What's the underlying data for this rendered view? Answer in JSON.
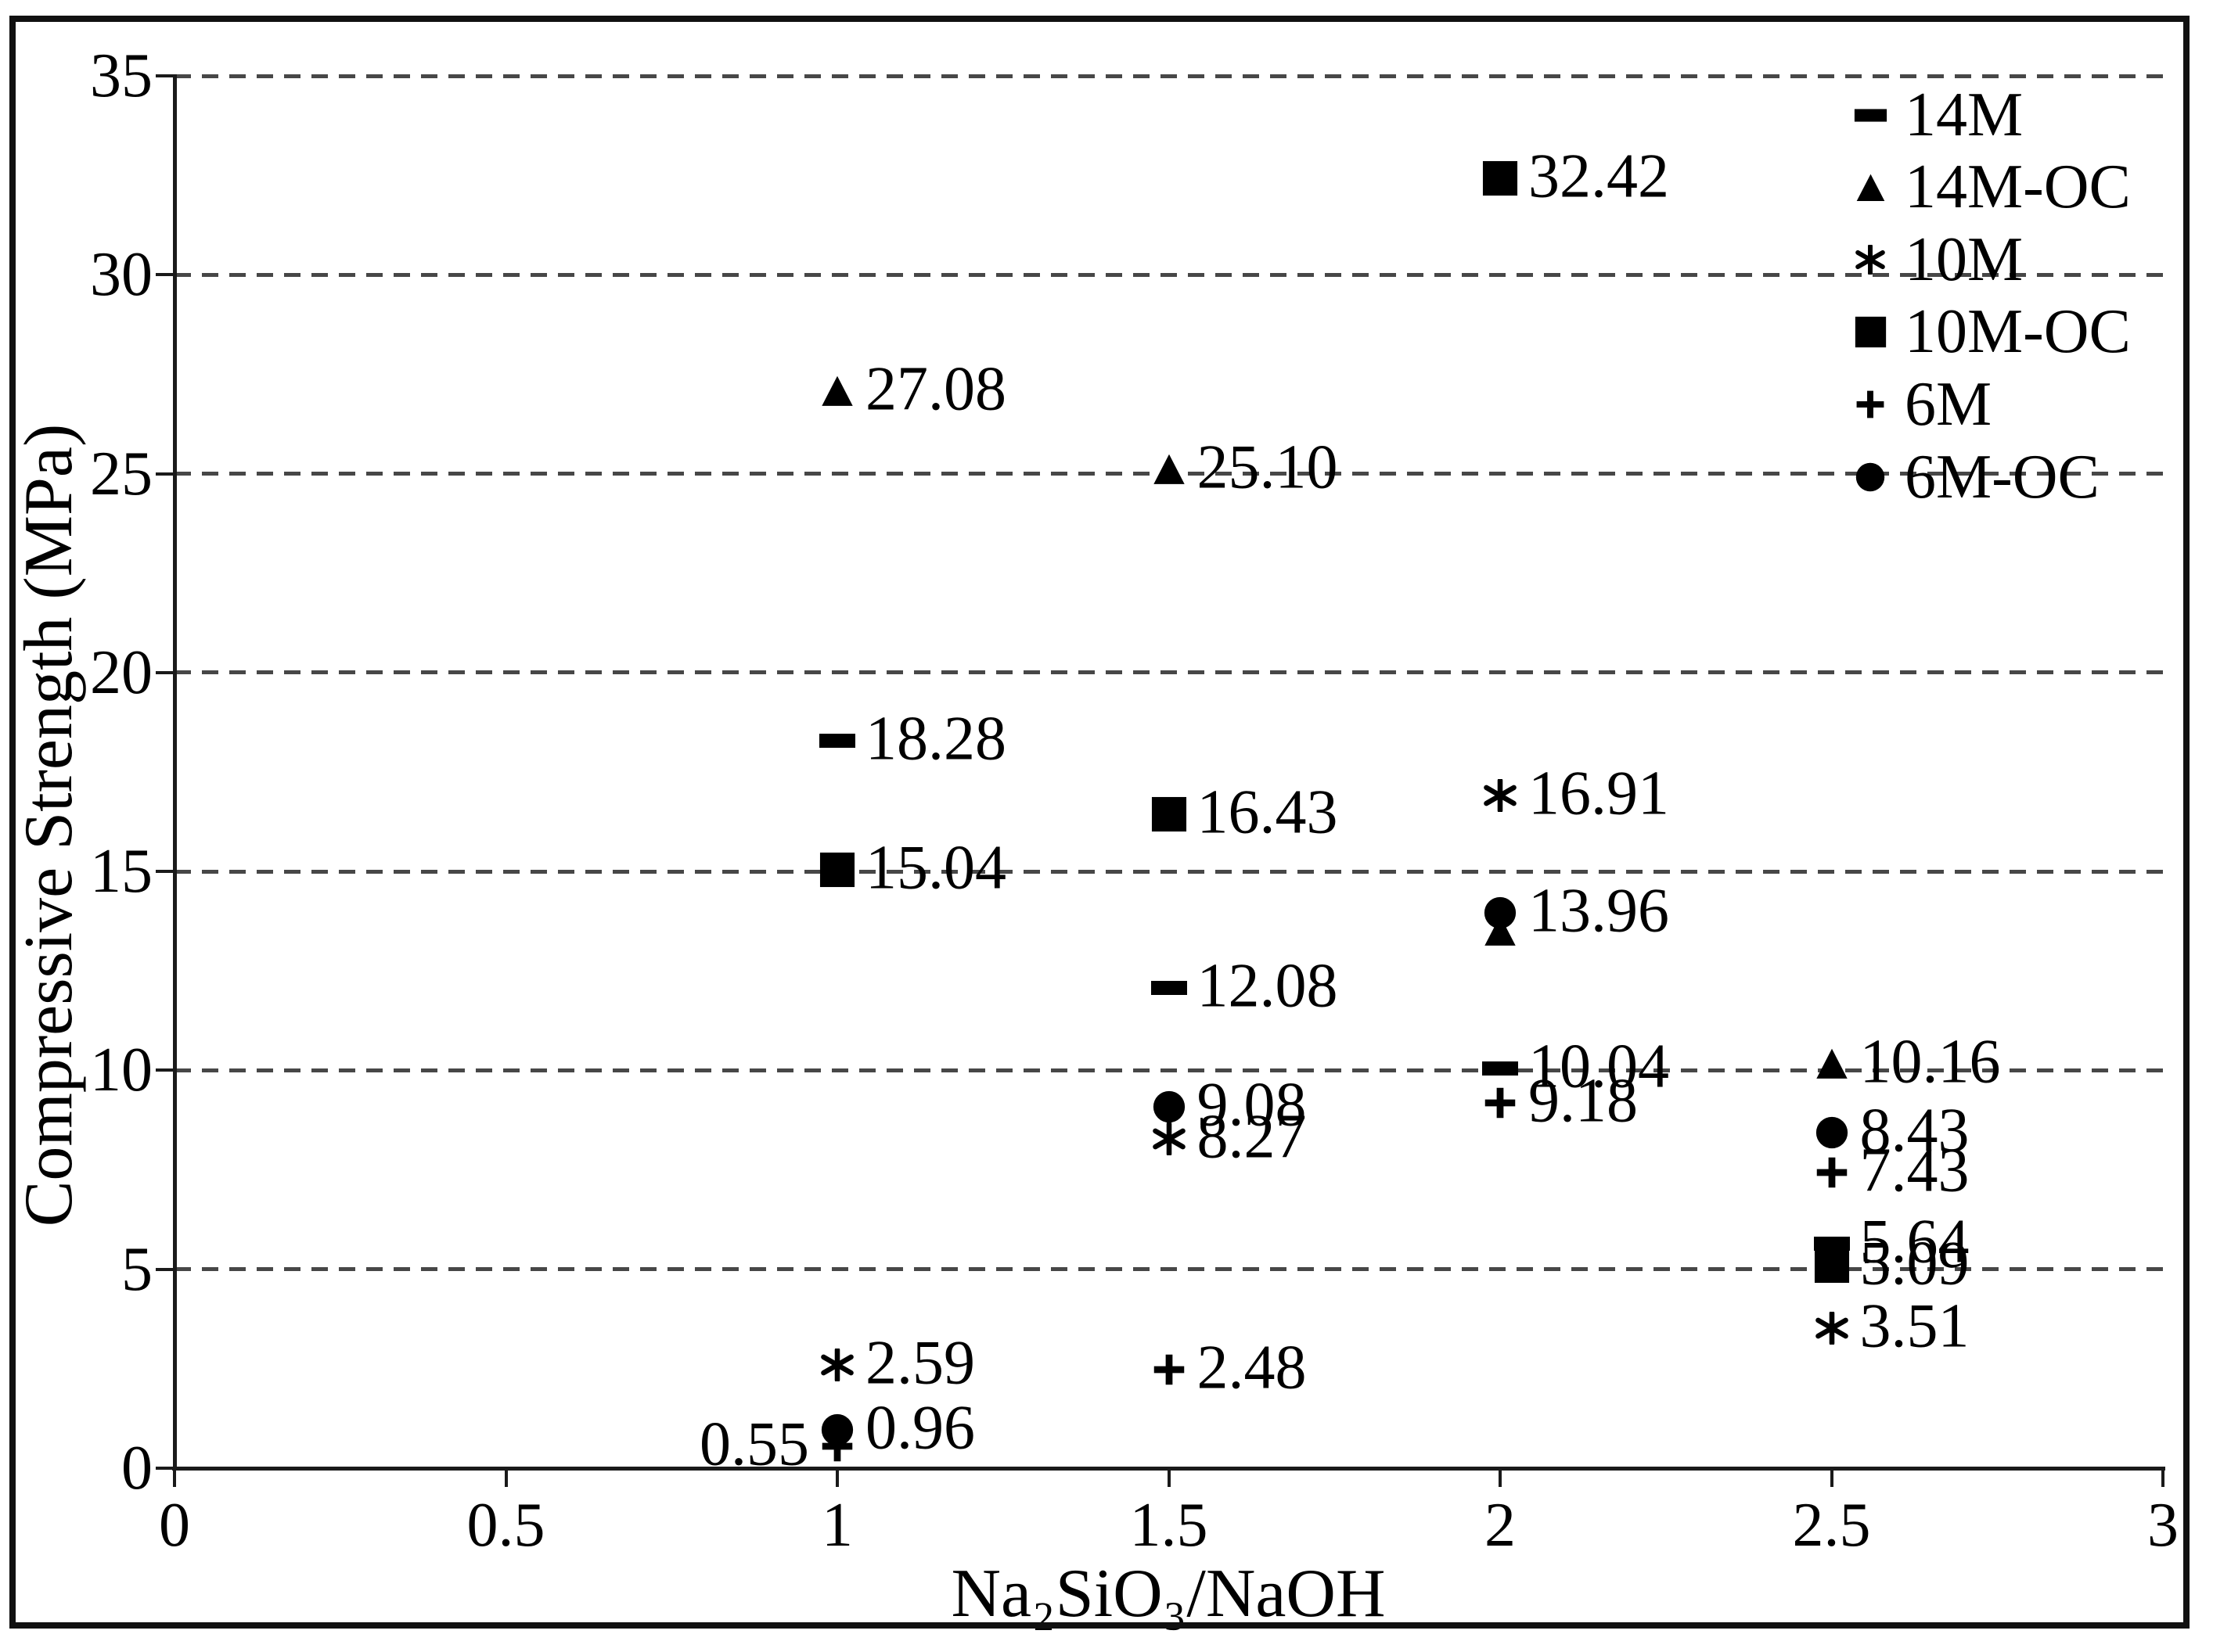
{
  "figure": {
    "background": "#ffffff",
    "border_color": "#111111",
    "text_color": "#000000",
    "gridline_color": "#474747",
    "axis_color": "#1a1a1a"
  },
  "chart_data": {
    "type": "scatter",
    "title": "",
    "xlabel": "Na₂SiO₃/NaOH",
    "ylabel": "Compressive Strength (MPa)",
    "xlim": [
      0,
      3
    ],
    "ylim": [
      0,
      35
    ],
    "grid": "horizontal dashed lines every 5 MPa",
    "legend_position": "top-right inside plot",
    "marker_color": "#000000",
    "x_ticks": [
      {
        "v": 0,
        "label": "0"
      },
      {
        "v": 0.5,
        "label": "0.5"
      },
      {
        "v": 1,
        "label": "1"
      },
      {
        "v": 1.5,
        "label": "1.5"
      },
      {
        "v": 2,
        "label": "2"
      },
      {
        "v": 2.5,
        "label": "2.5"
      },
      {
        "v": 3,
        "label": "3"
      }
    ],
    "y_ticks": [
      {
        "v": 0,
        "label": "0"
      },
      {
        "v": 5,
        "label": "5"
      },
      {
        "v": 10,
        "label": "10"
      },
      {
        "v": 15,
        "label": "15"
      },
      {
        "v": 20,
        "label": "20"
      },
      {
        "v": 25,
        "label": "25"
      },
      {
        "v": 30,
        "label": "30"
      },
      {
        "v": 35,
        "label": "35"
      }
    ],
    "y_gridlines": [
      5,
      10,
      15,
      20,
      25,
      30,
      35
    ],
    "series": [
      {
        "name": "14M",
        "marker": "dash",
        "points": [
          {
            "x": 1,
            "y": 18.28,
            "label": "18.28"
          },
          {
            "x": 1.5,
            "y": 12.08,
            "label": "12.08"
          },
          {
            "x": 2,
            "y": 10.04,
            "label": "10.04"
          },
          {
            "x": 2.5,
            "y": 5.64,
            "label": "5.64"
          }
        ]
      },
      {
        "name": "14M-OC",
        "marker": "triangle",
        "points": [
          {
            "x": 1,
            "y": 27.08,
            "label": "27.08"
          },
          {
            "x": 1.5,
            "y": 25.1,
            "label": "25.10"
          },
          {
            "x": 2,
            "y": 13.5,
            "label": null,
            "estimated": true
          },
          {
            "x": 2.5,
            "y": 10.16,
            "label": "10.16"
          }
        ]
      },
      {
        "name": "10M",
        "marker": "asterisk",
        "points": [
          {
            "x": 1,
            "y": 2.59,
            "label": "2.59"
          },
          {
            "x": 1.5,
            "y": 8.27,
            "label": "8.27"
          },
          {
            "x": 2,
            "y": 16.91,
            "label": "16.91"
          },
          {
            "x": 2.5,
            "y": 3.51,
            "label": "3.51"
          }
        ]
      },
      {
        "name": "10M-OC",
        "marker": "square",
        "points": [
          {
            "x": 1,
            "y": 15.04,
            "label": "15.04"
          },
          {
            "x": 1.5,
            "y": 16.43,
            "label": "16.43"
          },
          {
            "x": 2,
            "y": 32.42,
            "label": "32.42"
          },
          {
            "x": 2.5,
            "y": 5.09,
            "label": "5.09"
          }
        ]
      },
      {
        "name": "6M",
        "marker": "plus",
        "points": [
          {
            "x": 1,
            "y": 0.55,
            "label": "0.55",
            "label_side": "left"
          },
          {
            "x": 1.5,
            "y": 2.48,
            "label": "2.48"
          },
          {
            "x": 2,
            "y": 9.18,
            "label": "9.18"
          },
          {
            "x": 2.5,
            "y": 7.43,
            "label": "7.43"
          }
        ]
      },
      {
        "name": "6M-OC",
        "marker": "circle",
        "points": [
          {
            "x": 1,
            "y": 0.96,
            "label": "0.96"
          },
          {
            "x": 1.5,
            "y": 9.08,
            "label": "9.08"
          },
          {
            "x": 2,
            "y": 13.96,
            "label": "13.96"
          },
          {
            "x": 2.5,
            "y": 8.43,
            "label": "8.43"
          }
        ]
      }
    ]
  }
}
